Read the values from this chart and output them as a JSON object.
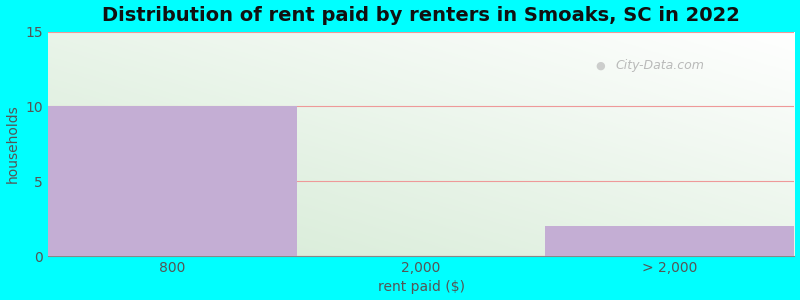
{
  "title": "Distribution of rent paid by renters in Smoaks, SC in 2022",
  "categories": [
    "800",
    "2,000",
    "> 2,000"
  ],
  "values": [
    10,
    0,
    2
  ],
  "bar_color": "#c4aed4",
  "xlabel": "rent paid ($)",
  "ylabel": "households",
  "ylim": [
    0,
    15
  ],
  "yticks": [
    0,
    5,
    10,
    15
  ],
  "xlim": [
    0,
    3
  ],
  "xtick_positions": [
    0.5,
    1.5,
    2.5
  ],
  "background_color": "#00ffff",
  "title_fontsize": 14,
  "axis_label_fontsize": 10,
  "tick_fontsize": 10,
  "watermark_text": "City-Data.com",
  "grid_color": "#ee9999",
  "gradient_colors_top": "#ffffff",
  "gradient_colors_bottom": "#d4ead4"
}
